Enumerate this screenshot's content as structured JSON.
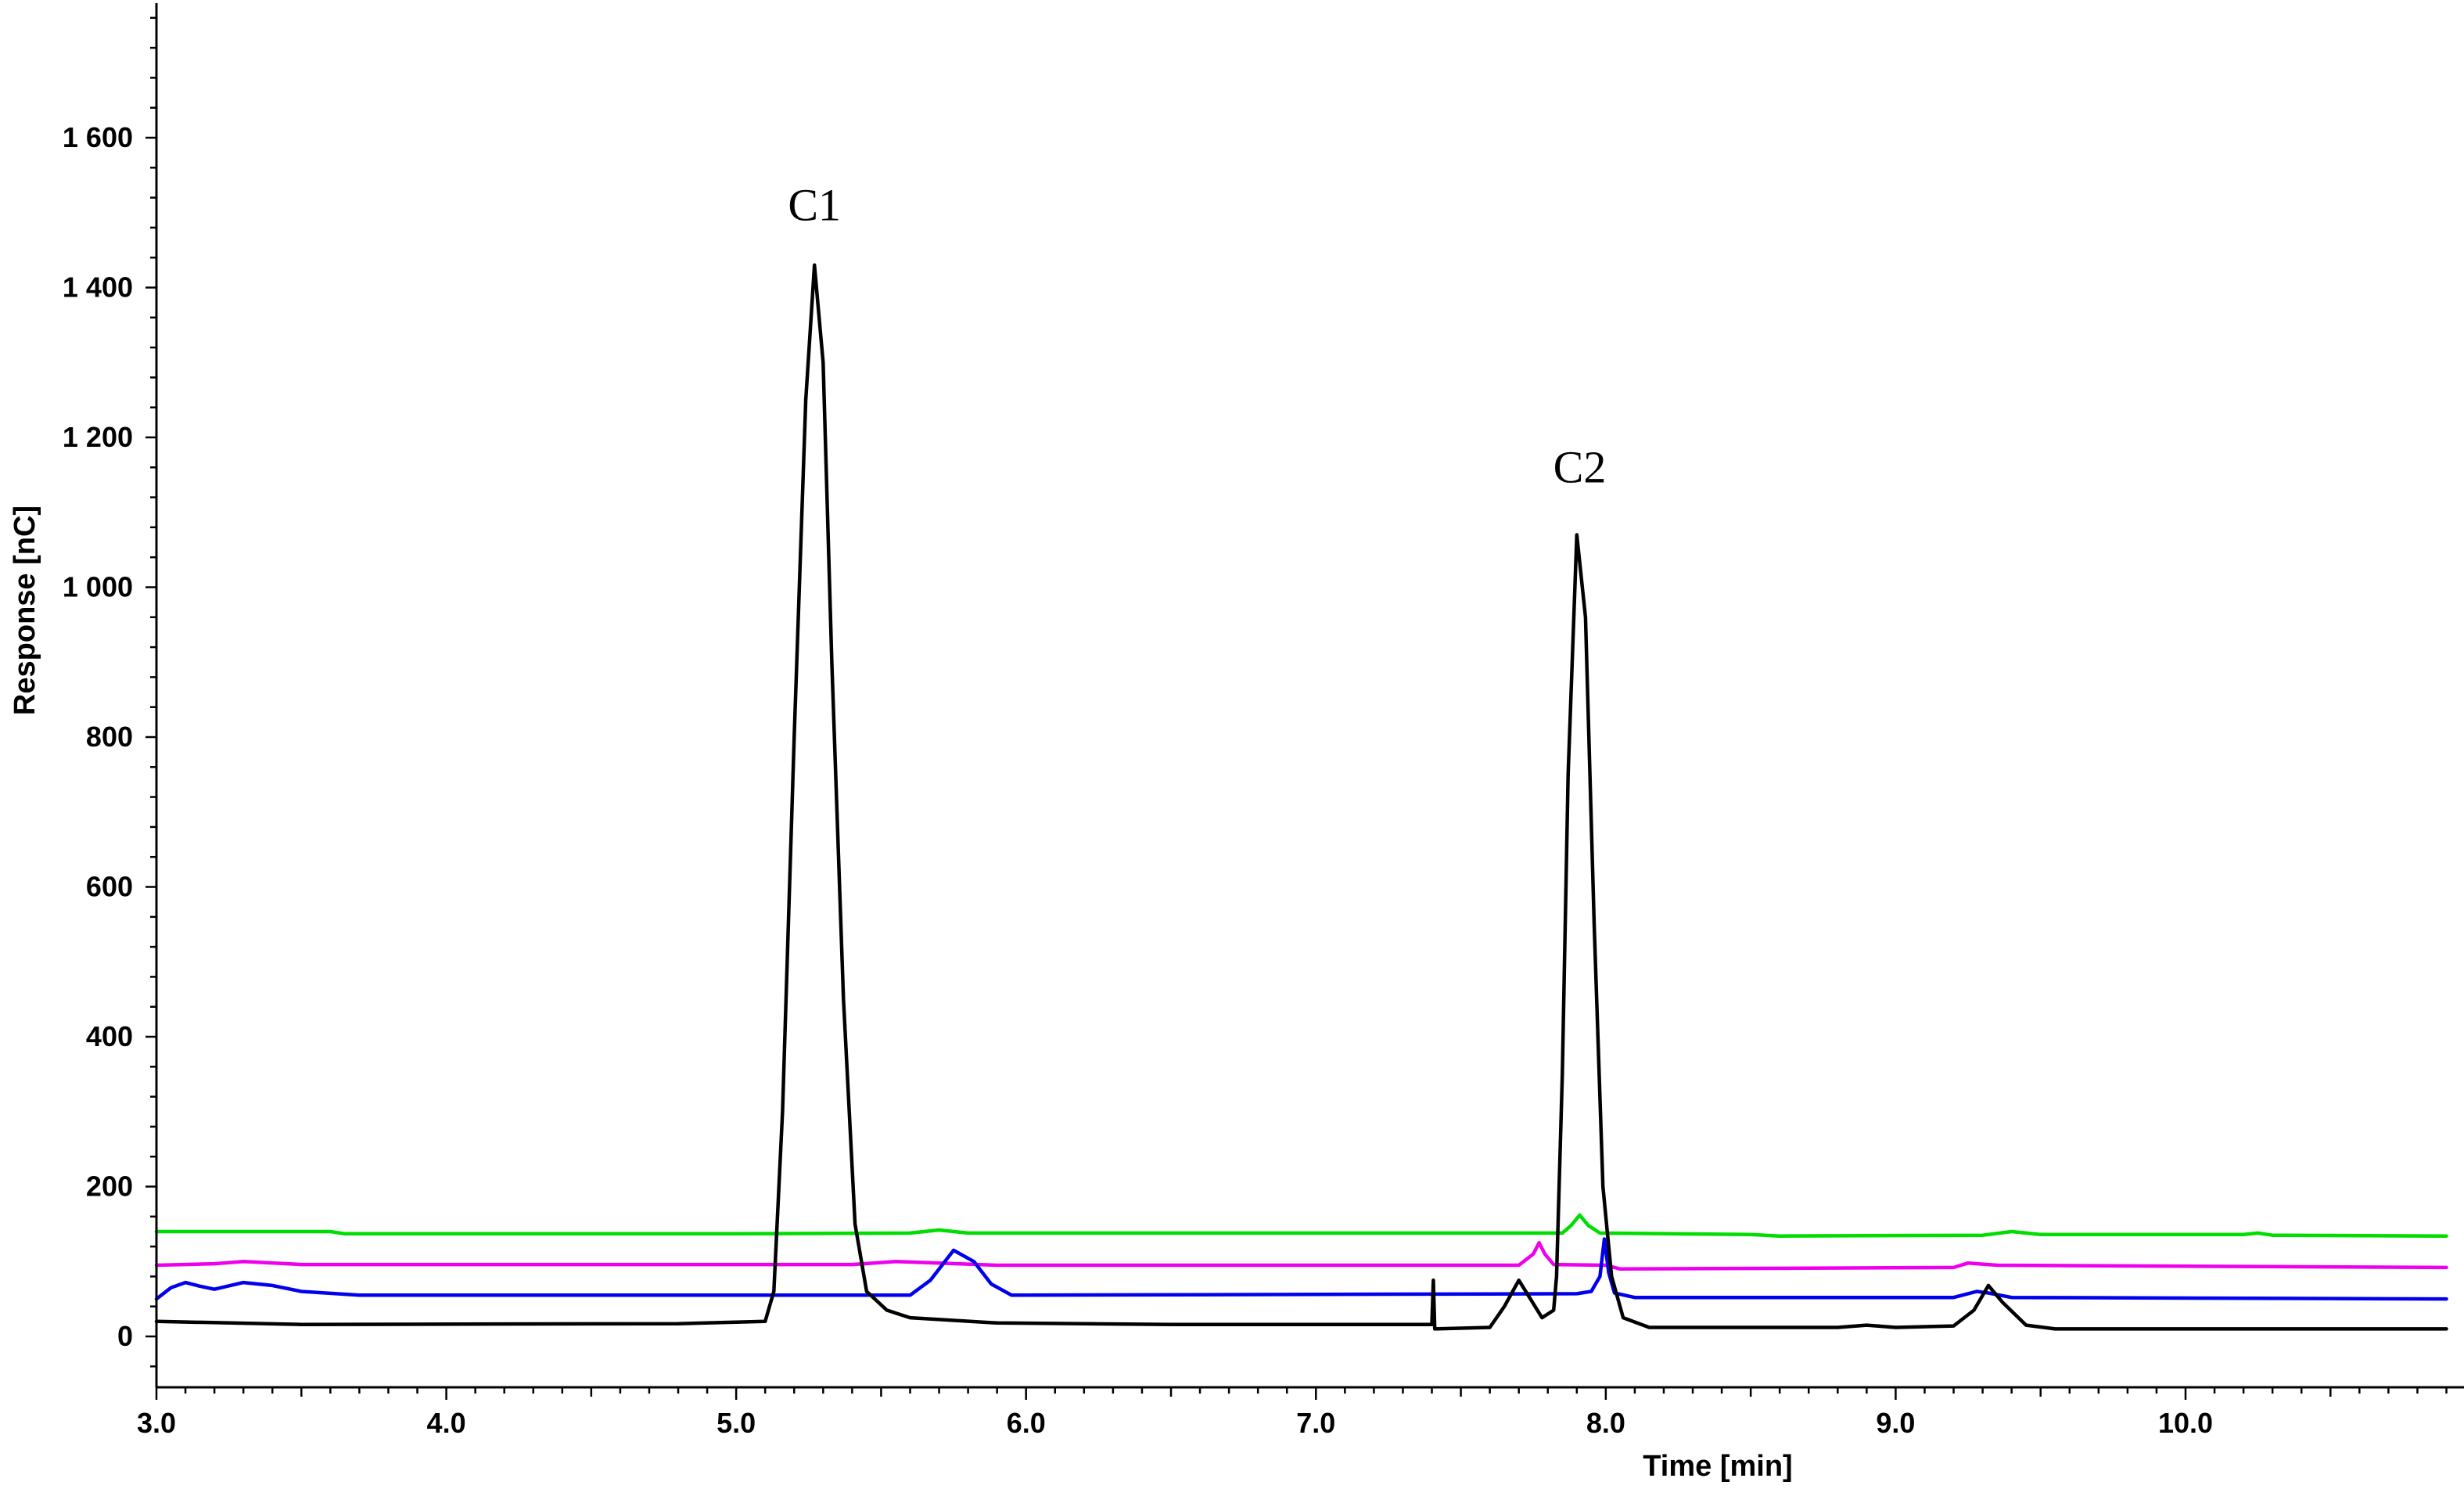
{
  "chart_data": {
    "type": "line",
    "xlabel": "Time [min]",
    "ylabel": "Response [nC]",
    "xlim": [
      3.0,
      10.9
    ],
    "ylim": [
      -60,
      1780
    ],
    "x_ticks": [
      {
        "value": 3.0,
        "label": "3.0"
      },
      {
        "value": 4.0,
        "label": "4.0"
      },
      {
        "value": 5.0,
        "label": "5.0"
      },
      {
        "value": 6.0,
        "label": "6.0"
      },
      {
        "value": 7.0,
        "label": "7.0"
      },
      {
        "value": 8.0,
        "label": "8.0"
      },
      {
        "value": 9.0,
        "label": "9.0"
      },
      {
        "value": 10.0,
        "label": "10.0"
      }
    ],
    "y_ticks": [
      {
        "value": 0,
        "label": "0"
      },
      {
        "value": 200,
        "label": "200"
      },
      {
        "value": 400,
        "label": "400"
      },
      {
        "value": 600,
        "label": "600"
      },
      {
        "value": 800,
        "label": "800"
      },
      {
        "value": 1000,
        "label": "1 000"
      },
      {
        "value": 1200,
        "label": "1 200"
      },
      {
        "value": 1400,
        "label": "1 400"
      },
      {
        "value": 1600,
        "label": "1 600"
      }
    ],
    "annotations": [
      {
        "text": "C1",
        "x": 5.27,
        "y": 1490
      },
      {
        "text": "C2",
        "x": 7.91,
        "y": 1140
      }
    ],
    "grid": false,
    "series": [
      {
        "color": "#00dd00",
        "points": [
          [
            3.0,
            140
          ],
          [
            3.6,
            140
          ],
          [
            3.65,
            137
          ],
          [
            5.0,
            137
          ],
          [
            5.6,
            138
          ],
          [
            5.7,
            142
          ],
          [
            5.8,
            138
          ],
          [
            7.85,
            138
          ],
          [
            7.88,
            148
          ],
          [
            7.91,
            162
          ],
          [
            7.94,
            148
          ],
          [
            7.98,
            138
          ],
          [
            8.5,
            136
          ],
          [
            8.6,
            134
          ],
          [
            9.3,
            135
          ],
          [
            9.4,
            140
          ],
          [
            9.5,
            136
          ],
          [
            10.2,
            136
          ],
          [
            10.25,
            138
          ],
          [
            10.3,
            135
          ],
          [
            10.9,
            134
          ]
        ]
      },
      {
        "color": "#ee00ee",
        "points": [
          [
            3.0,
            95
          ],
          [
            3.2,
            97
          ],
          [
            3.3,
            100
          ],
          [
            3.5,
            96
          ],
          [
            5.4,
            96
          ],
          [
            5.55,
            100
          ],
          [
            5.7,
            98
          ],
          [
            5.9,
            95
          ],
          [
            7.7,
            95
          ],
          [
            7.75,
            110
          ],
          [
            7.77,
            125
          ],
          [
            7.79,
            110
          ],
          [
            7.82,
            96
          ],
          [
            8.0,
            95
          ],
          [
            8.05,
            90
          ],
          [
            9.2,
            92
          ],
          [
            9.25,
            98
          ],
          [
            9.35,
            95
          ],
          [
            10.9,
            92
          ]
        ]
      },
      {
        "color": "#0000ee",
        "points": [
          [
            3.0,
            50
          ],
          [
            3.05,
            65
          ],
          [
            3.1,
            72
          ],
          [
            3.15,
            67
          ],
          [
            3.2,
            63
          ],
          [
            3.3,
            72
          ],
          [
            3.4,
            68
          ],
          [
            3.5,
            60
          ],
          [
            3.7,
            55
          ],
          [
            5.6,
            55
          ],
          [
            5.67,
            75
          ],
          [
            5.75,
            115
          ],
          [
            5.82,
            100
          ],
          [
            5.88,
            70
          ],
          [
            5.95,
            55
          ],
          [
            7.9,
            57
          ],
          [
            7.95,
            60
          ],
          [
            7.98,
            80
          ],
          [
            7.995,
            130
          ],
          [
            8.01,
            85
          ],
          [
            8.03,
            58
          ],
          [
            8.1,
            52
          ],
          [
            9.2,
            52
          ],
          [
            9.28,
            60
          ],
          [
            9.32,
            58
          ],
          [
            9.4,
            52
          ],
          [
            10.9,
            50
          ]
        ]
      },
      {
        "color": "#000000",
        "points": [
          [
            3.0,
            20
          ],
          [
            3.5,
            16
          ],
          [
            4.8,
            17
          ],
          [
            5.1,
            20
          ],
          [
            5.13,
            60
          ],
          [
            5.16,
            300
          ],
          [
            5.2,
            800
          ],
          [
            5.24,
            1250
          ],
          [
            5.27,
            1430
          ],
          [
            5.3,
            1300
          ],
          [
            5.33,
            900
          ],
          [
            5.37,
            450
          ],
          [
            5.41,
            150
          ],
          [
            5.45,
            60
          ],
          [
            5.52,
            35
          ],
          [
            5.6,
            25
          ],
          [
            5.9,
            18
          ],
          [
            6.5,
            16
          ],
          [
            7.4,
            16
          ],
          [
            7.405,
            75
          ],
          [
            7.41,
            10
          ],
          [
            7.6,
            12
          ],
          [
            7.65,
            40
          ],
          [
            7.7,
            75
          ],
          [
            7.74,
            50
          ],
          [
            7.78,
            25
          ],
          [
            7.82,
            35
          ],
          [
            7.83,
            80
          ],
          [
            7.85,
            350
          ],
          [
            7.87,
            750
          ],
          [
            7.9,
            1070
          ],
          [
            7.93,
            960
          ],
          [
            7.96,
            550
          ],
          [
            7.99,
            200
          ],
          [
            8.02,
            80
          ],
          [
            8.06,
            25
          ],
          [
            8.15,
            12
          ],
          [
            8.8,
            12
          ],
          [
            8.9,
            15
          ],
          [
            9.0,
            12
          ],
          [
            9.2,
            14
          ],
          [
            9.27,
            35
          ],
          [
            9.32,
            68
          ],
          [
            9.37,
            45
          ],
          [
            9.45,
            15
          ],
          [
            9.55,
            10
          ],
          [
            10.9,
            10
          ]
        ]
      }
    ]
  }
}
